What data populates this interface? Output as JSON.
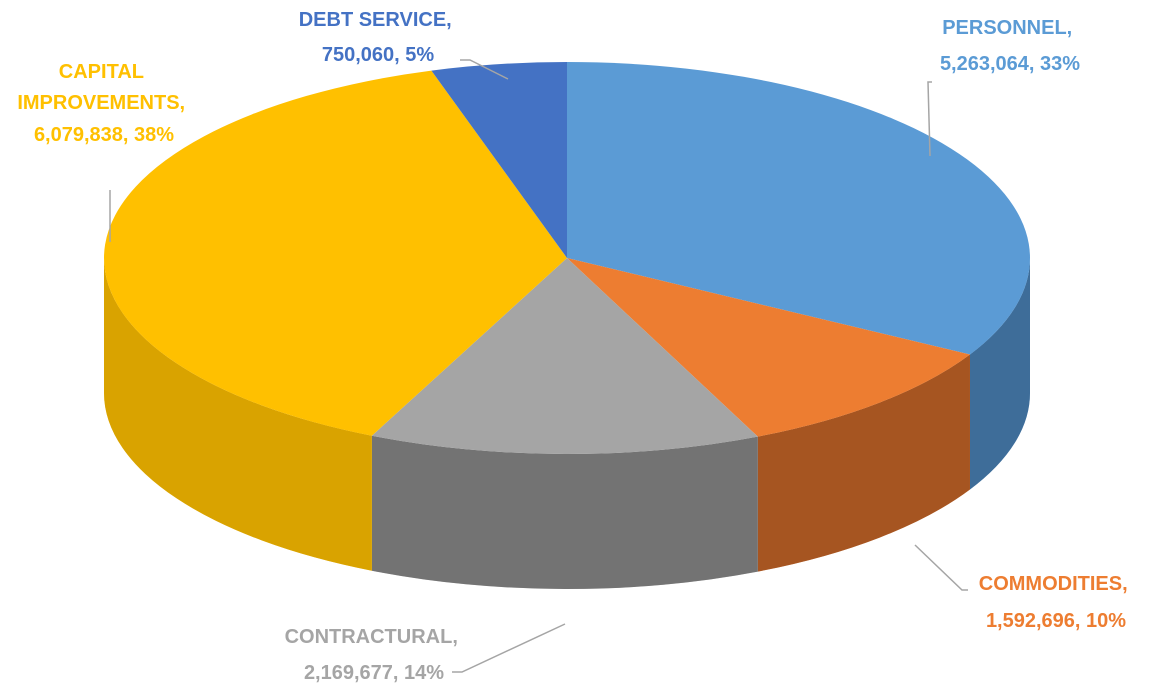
{
  "chart_data": {
    "type": "pie",
    "title": "",
    "legend": "none",
    "slices": [
      {
        "name": "PERSONNEL",
        "value": 5263064,
        "percent": "33%",
        "value_label": "5,263,064",
        "color": "#5B9BD5",
        "side_color": "#264767"
      },
      {
        "name": "COMMODITIES",
        "value": 1592696,
        "percent": "10%",
        "value_label": "1,592,696",
        "color": "#ED7D31",
        "side_color": "#6B3414"
      },
      {
        "name": "CONTRACTURAL",
        "value": 2169677,
        "percent": "14%",
        "value_label": "2,169,677",
        "color": "#A5A5A5",
        "side_color": "#4A4A4A"
      },
      {
        "name": "CAPITAL IMPROVEMENTS",
        "value": 6079838,
        "percent": "38%",
        "value_label": "6,079,838",
        "color": "#FFC000",
        "side_color": "#B98A00"
      },
      {
        "name": "DEBT SERVICE",
        "value": 750060,
        "percent": "5%",
        "value_label": "750,060",
        "color": "#4472C4",
        "side_color": "#23406F"
      }
    ]
  }
}
